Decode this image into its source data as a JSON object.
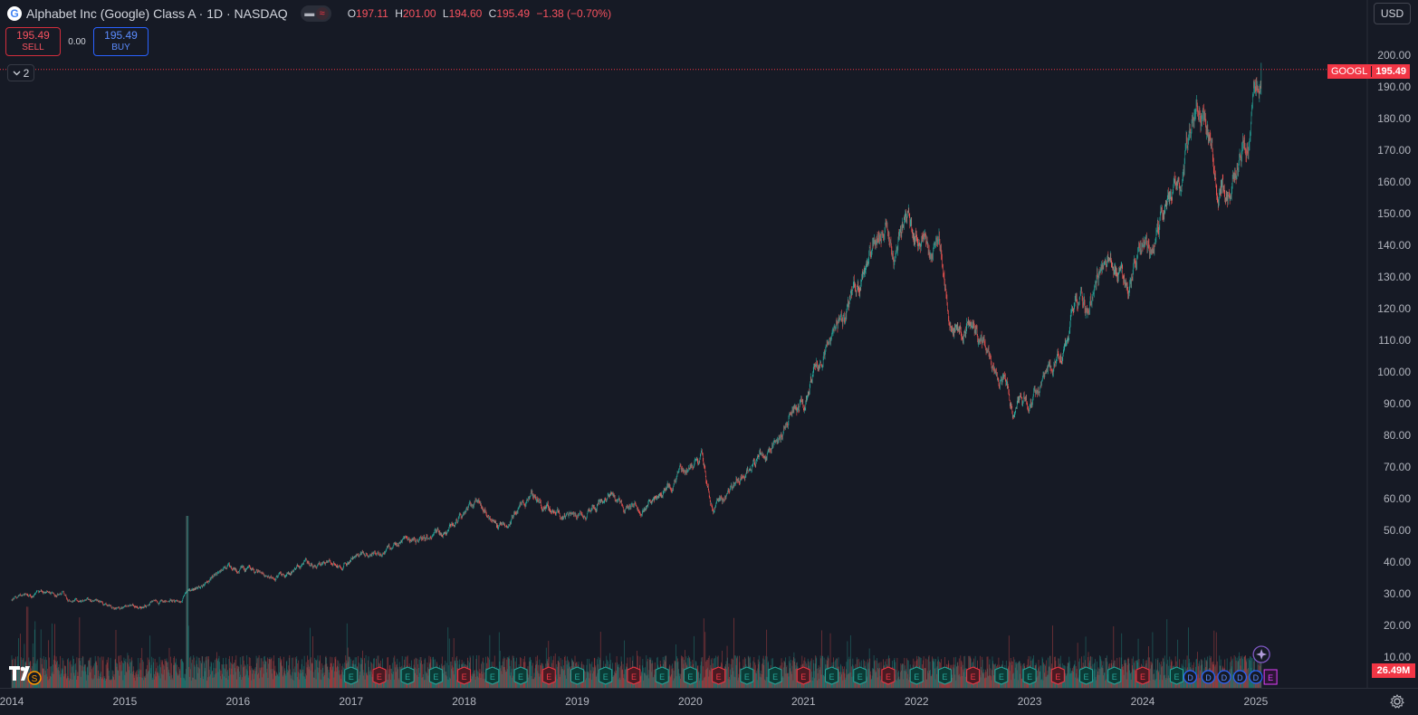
{
  "header": {
    "symbol_title": "Alphabet Inc (Google) Class A · 1D · NASDAQ",
    "ohlc": {
      "o_label": "O",
      "o": "197.11",
      "h_label": "H",
      "h": "201.00",
      "l_label": "L",
      "l": "194.60",
      "c_label": "C",
      "c": "195.49",
      "change": "−1.38 (−0.70%)"
    }
  },
  "trade": {
    "sell_price": "195.49",
    "sell_label": "SELL",
    "spread": "0.00",
    "buy_price": "195.49",
    "buy_label": "BUY"
  },
  "indicators_toggle": {
    "count": "2"
  },
  "currency": "USD",
  "price_badge": {
    "symbol": "GOOGL",
    "price": "195.49"
  },
  "volume_badge": "26.49M",
  "colors": {
    "up": "#26a69a",
    "down": "#ef5350",
    "background": "#161a25",
    "last_price": "#f23645",
    "earnings": "#f23645"
  },
  "icons": [
    "google-logo-icon",
    "chevron-down-icon",
    "tradingview-logo-icon",
    "split-icon",
    "earnings-icon",
    "dividend-icon",
    "sparkle-icon",
    "gear-icon"
  ],
  "chart_data": {
    "type": "candlestick",
    "y_axis": {
      "min": 0,
      "max": 205,
      "ticks": [
        "200.00",
        "190.00",
        "180.00",
        "170.00",
        "160.00",
        "150.00",
        "140.00",
        "130.00",
        "120.00",
        "110.00",
        "100.00",
        "90.00",
        "80.00",
        "70.00",
        "60.00",
        "50.00",
        "40.00",
        "30.00",
        "20.00",
        "10.00"
      ],
      "tick_values": [
        200,
        190,
        180,
        170,
        160,
        150,
        140,
        130,
        120,
        110,
        100,
        90,
        80,
        70,
        60,
        50,
        40,
        30,
        20,
        10
      ]
    },
    "x_axis": {
      "labels": [
        "2014",
        "2015",
        "2016",
        "2017",
        "2018",
        "2019",
        "2020",
        "2021",
        "2022",
        "2023",
        "2024",
        "2025"
      ],
      "years": [
        2014,
        2015,
        2016,
        2017,
        2018,
        2019,
        2020,
        2021,
        2022,
        2023,
        2024,
        2025
      ],
      "range": [
        2014.0,
        2025.9
      ]
    },
    "last_price": 195.49,
    "price_keypoints": [
      [
        2014.0,
        28
      ],
      [
        2014.3,
        30
      ],
      [
        2014.5,
        29
      ],
      [
        2014.8,
        27
      ],
      [
        2015.0,
        26
      ],
      [
        2015.3,
        27
      ],
      [
        2015.5,
        28
      ],
      [
        2015.55,
        31
      ],
      [
        2015.7,
        33
      ],
      [
        2015.9,
        38
      ],
      [
        2016.1,
        37
      ],
      [
        2016.4,
        36
      ],
      [
        2016.6,
        39
      ],
      [
        2016.9,
        40
      ],
      [
        2017.0,
        41
      ],
      [
        2017.3,
        44
      ],
      [
        2017.5,
        47
      ],
      [
        2017.8,
        49
      ],
      [
        2018.0,
        55
      ],
      [
        2018.1,
        58
      ],
      [
        2018.3,
        52
      ],
      [
        2018.5,
        57
      ],
      [
        2018.6,
        61
      ],
      [
        2018.8,
        55
      ],
      [
        2018.9,
        53
      ],
      [
        2019.0,
        54
      ],
      [
        2019.3,
        62
      ],
      [
        2019.4,
        56
      ],
      [
        2019.6,
        58
      ],
      [
        2019.8,
        64
      ],
      [
        2020.0,
        70
      ],
      [
        2020.1,
        74
      ],
      [
        2020.2,
        56
      ],
      [
        2020.3,
        60
      ],
      [
        2020.5,
        70
      ],
      [
        2020.7,
        75
      ],
      [
        2020.8,
        80
      ],
      [
        2020.9,
        88
      ],
      [
        2021.0,
        90
      ],
      [
        2021.1,
        102
      ],
      [
        2021.3,
        112
      ],
      [
        2021.4,
        120
      ],
      [
        2021.6,
        136
      ],
      [
        2021.7,
        145
      ],
      [
        2021.8,
        140
      ],
      [
        2021.9,
        148
      ],
      [
        2022.0,
        144
      ],
      [
        2022.1,
        135
      ],
      [
        2022.2,
        138
      ],
      [
        2022.3,
        118
      ],
      [
        2022.4,
        112
      ],
      [
        2022.5,
        115
      ],
      [
        2022.6,
        110
      ],
      [
        2022.7,
        100
      ],
      [
        2022.8,
        95
      ],
      [
        2022.85,
        88
      ],
      [
        2022.9,
        90
      ],
      [
        2023.0,
        90
      ],
      [
        2023.1,
        96
      ],
      [
        2023.2,
        100
      ],
      [
        2023.3,
        108
      ],
      [
        2023.4,
        122
      ],
      [
        2023.5,
        120
      ],
      [
        2023.6,
        130
      ],
      [
        2023.7,
        135
      ],
      [
        2023.8,
        130
      ],
      [
        2023.85,
        125
      ],
      [
        2023.95,
        138
      ],
      [
        2024.0,
        140
      ],
      [
        2024.1,
        140
      ],
      [
        2024.2,
        150
      ],
      [
        2024.3,
        155
      ],
      [
        2024.4,
        172
      ],
      [
        2024.5,
        185
      ],
      [
        2024.6,
        172
      ],
      [
        2024.7,
        160
      ],
      [
        2024.75,
        152
      ],
      [
        2024.85,
        165
      ],
      [
        2024.9,
        170
      ],
      [
        2025.0,
        190
      ],
      [
        2025.05,
        195.49
      ]
    ],
    "earnings_markers": [
      2017.0,
      2017.25,
      2017.5,
      2017.75,
      2018.0,
      2018.25,
      2018.5,
      2018.75,
      2019.0,
      2019.25,
      2019.5,
      2019.75,
      2020.0,
      2020.25,
      2020.5,
      2020.75,
      2021.0,
      2021.25,
      2021.5,
      2021.75,
      2022.0,
      2022.25,
      2022.5,
      2022.75,
      2023.0,
      2023.25,
      2023.5,
      2023.75,
      2024.0,
      2024.3
    ],
    "dividend_markers": [
      2024.42,
      2024.58,
      2024.72,
      2024.86,
      2025.0
    ],
    "split_marker": 2014.3,
    "volume_axis": {
      "labels": [
        "20.00",
        "10.00"
      ]
    }
  }
}
